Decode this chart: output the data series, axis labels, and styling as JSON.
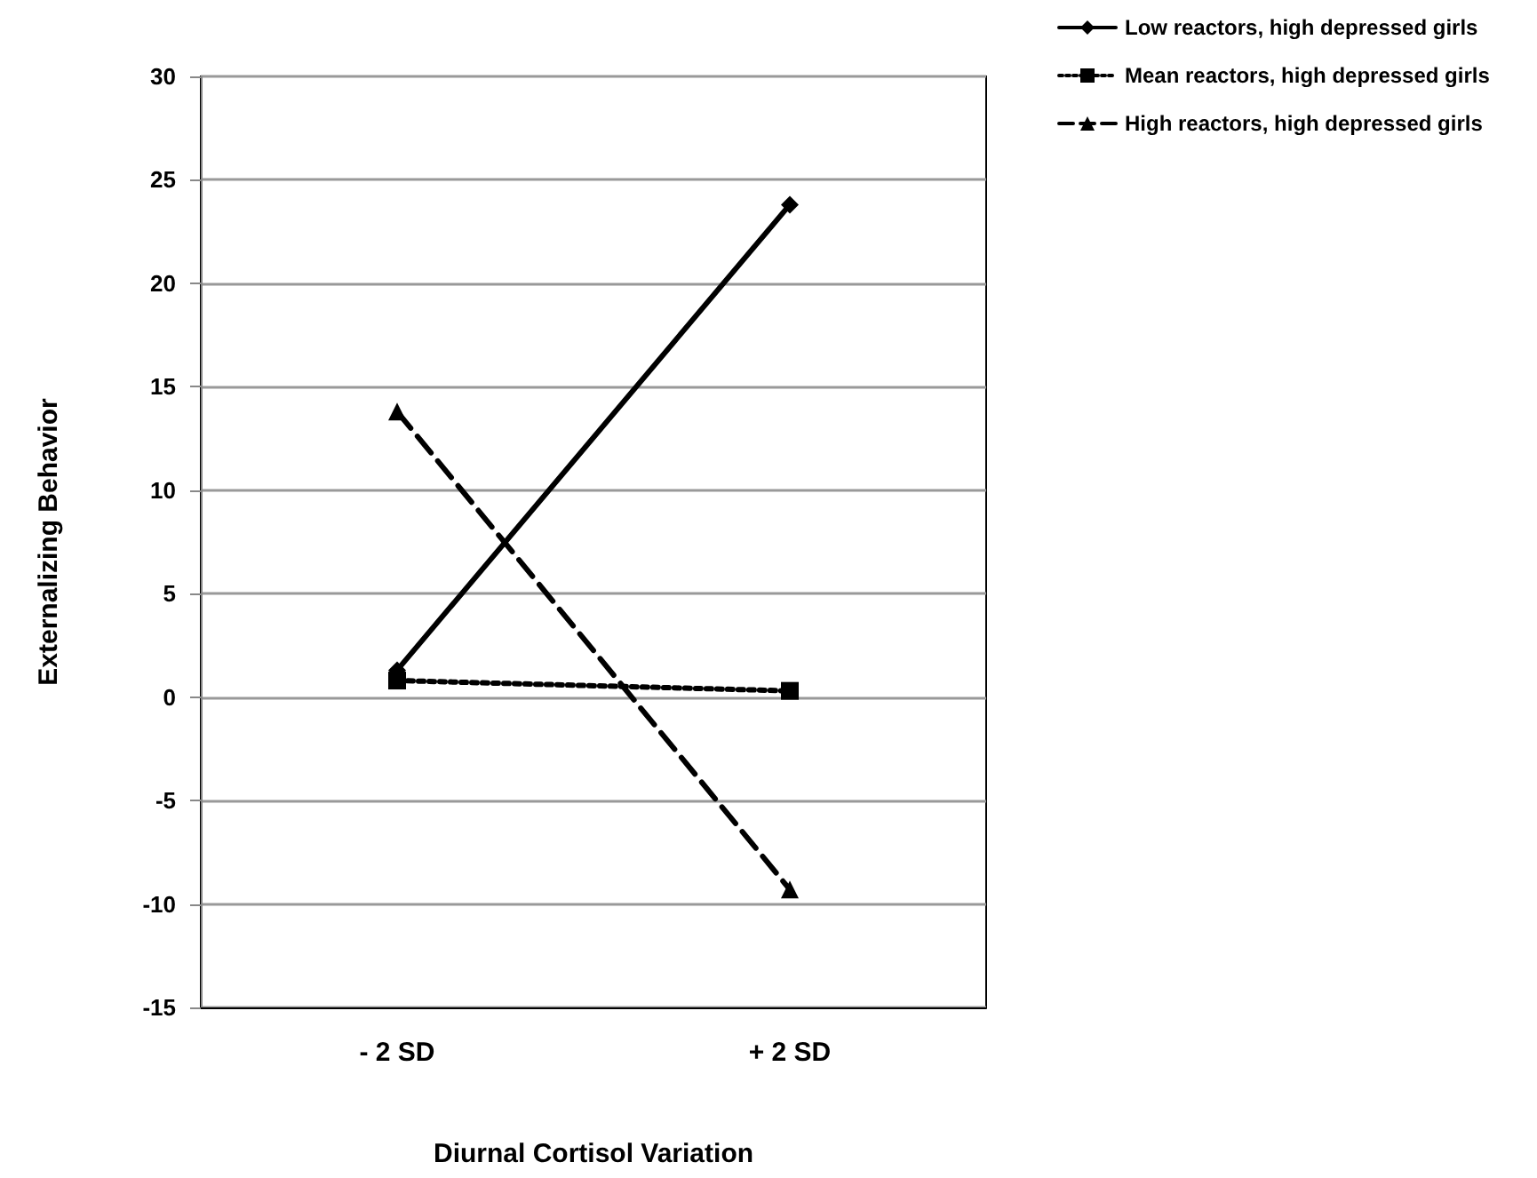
{
  "chart_data": {
    "type": "line",
    "xlabel": "Diurnal Cortisol Variation",
    "ylabel": "Externalizing Behavior",
    "categories": [
      "- 2 SD",
      "+ 2 SD"
    ],
    "series": [
      {
        "name": "Low reactors, high depressed girls",
        "color": "#000000",
        "values": [
          1.3,
          23.8
        ],
        "marker": "diamond",
        "line_style": "solid"
      },
      {
        "name": "Mean reactors, high depressed girls",
        "color": "#000000",
        "values": [
          0.8,
          0.3
        ],
        "marker": "square",
        "line_style": "dotted"
      },
      {
        "name": "High reactors, high depressed girls",
        "color": "#000000",
        "values": [
          13.8,
          -9.3
        ],
        "marker": "triangle",
        "line_style": "dashed"
      }
    ],
    "ylim": [
      -15,
      30
    ],
    "yticks": [
      -15,
      -10,
      -5,
      0,
      5,
      10,
      15,
      20,
      25,
      30
    ],
    "grid": "y",
    "legend": "top right"
  }
}
